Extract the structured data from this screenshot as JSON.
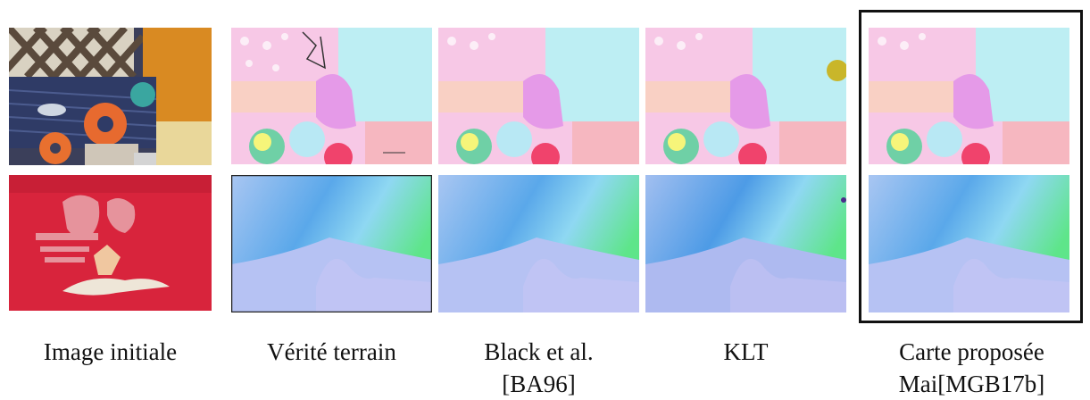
{
  "columns": [
    {
      "id": "initial",
      "caption_lines": [
        "Image initiale"
      ]
    },
    {
      "id": "ground-truth",
      "caption_lines": [
        "Vérité terrain"
      ]
    },
    {
      "id": "black",
      "caption_lines": [
        "Black et al.",
        "[BA96]"
      ]
    },
    {
      "id": "klt",
      "caption_lines": [
        "KLT"
      ]
    },
    {
      "id": "proposed",
      "caption_lines": [
        "Carte proposée",
        "Mai[MGB17b]"
      ]
    }
  ],
  "rows": [
    {
      "id": "rubberwhale",
      "content": "optical-flow-color-map"
    },
    {
      "id": "dimetrodon",
      "content": "optical-flow-color-map"
    }
  ],
  "highlighted_column": "proposed",
  "colors": {
    "pink_bg": "#f7c8e6",
    "cyan_bg": "#bdeef3",
    "salmon": "#f6b7c0",
    "magenta": "#e59ae8",
    "red_blob": "#f0436c",
    "flow_blue": "#a9c6f2",
    "flow_deep_blue": "#4d9be6",
    "flow_green": "#5ee58a",
    "photo_red": "#d8243c"
  }
}
